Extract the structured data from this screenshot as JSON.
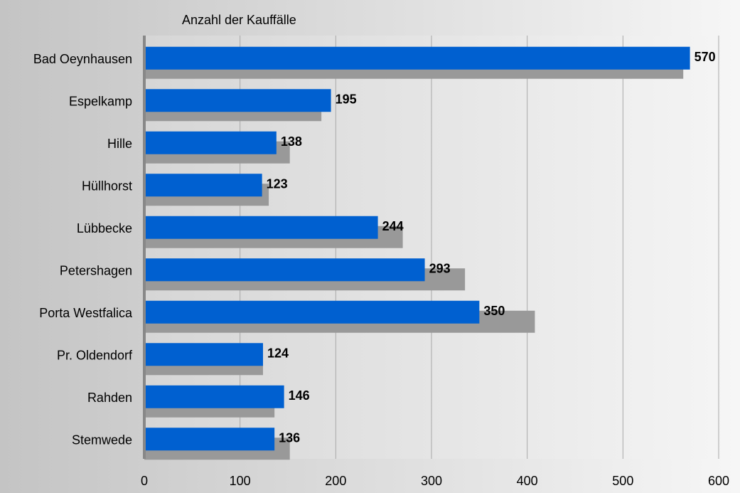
{
  "chart_data": {
    "type": "bar",
    "orientation": "horizontal",
    "title": "Anzahl der Kauffälle",
    "xlim": [
      0,
      600
    ],
    "xticks": [
      0,
      100,
      200,
      300,
      400,
      500,
      600
    ],
    "grid": "vertical",
    "categories": [
      "Bad Oeynhausen",
      "Espelkamp",
      "Hille",
      "Hüllhorst",
      "Lübbecke",
      "Petershagen",
      "Porta Westfalica",
      "Pr. Oldendorf",
      "Rahden",
      "Stemwede"
    ],
    "series": [
      {
        "color": "#999999",
        "values": [
          563,
          185,
          152,
          130,
          270,
          335,
          408,
          124,
          136,
          152
        ]
      },
      {
        "color": "#0060d0",
        "values": [
          570,
          195,
          138,
          123,
          244,
          293,
          350,
          124,
          146,
          136
        ]
      }
    ],
    "data_labels": [
      "570",
      "195",
      "138",
      "123",
      "244",
      "293",
      "350",
      "124",
      "146",
      "136"
    ]
  }
}
